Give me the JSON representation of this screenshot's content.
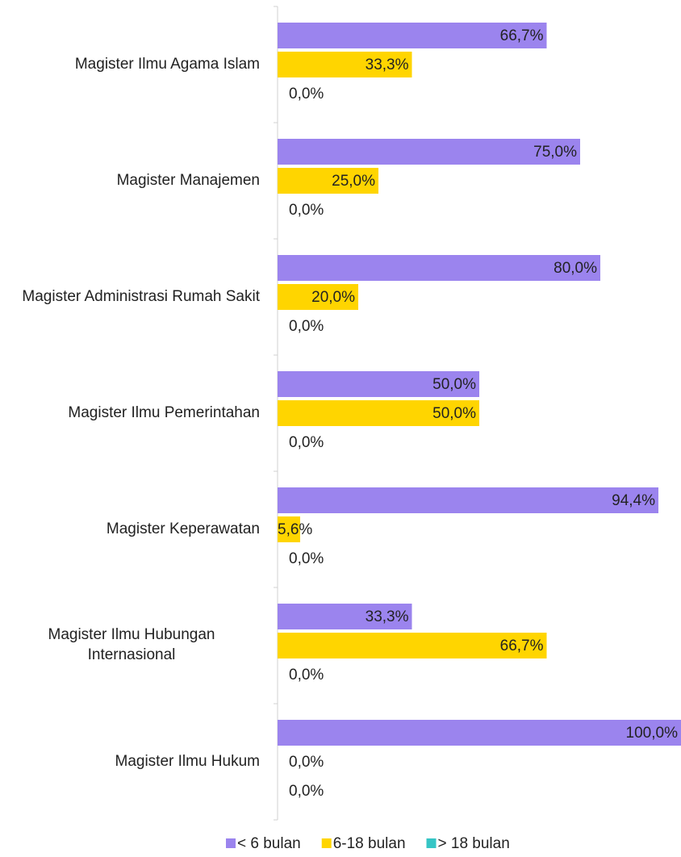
{
  "chart_data": {
    "type": "hbar",
    "categories": [
      "Magister Ilmu Agama Islam",
      "Magister Manajemen",
      "Magister Administrasi Rumah Sakit",
      "Magister Ilmu Pemerintahan",
      "Magister Keperawatan",
      "Magister Ilmu Hubungan Internasional",
      "Magister Ilmu Hukum"
    ],
    "xlim": [
      0,
      100
    ],
    "series": [
      {
        "name": "< 6 bulan",
        "color": "#9b84ee",
        "values": [
          66.7,
          75.0,
          80.0,
          50.0,
          94.4,
          33.3,
          100.0
        ],
        "value_labels": [
          "66,7%",
          "75,0%",
          "80,0%",
          "50,0%",
          "94,4%",
          "33,3%",
          "100,0%"
        ]
      },
      {
        "name": "6-18 bulan",
        "color": "#ffd500",
        "values": [
          33.3,
          25.0,
          20.0,
          50.0,
          5.6,
          66.7,
          0.0
        ],
        "value_labels": [
          "33,3%",
          "25,0%",
          "20,0%",
          "50,0%",
          "5,6%",
          "66,7%",
          "0,0%"
        ]
      },
      {
        "name": "> 18 bulan",
        "color": "#36c5c5",
        "values": [
          0.0,
          0.0,
          0.0,
          0.0,
          0.0,
          0.0,
          0.0
        ],
        "value_labels": [
          "0,0%",
          "0,0%",
          "0,0%",
          "0,0%",
          "0,0%",
          "0,0%",
          "0,0%"
        ]
      }
    ]
  }
}
